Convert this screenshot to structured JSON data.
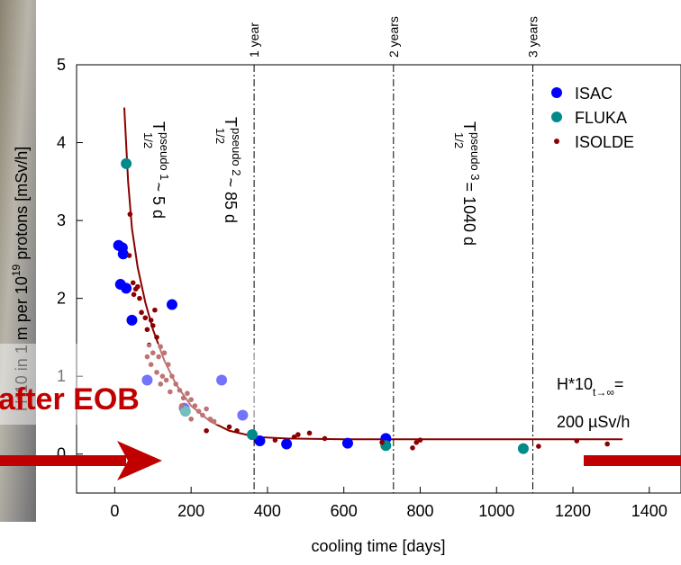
{
  "chart_data": {
    "type": "scatter",
    "xlabel": "cooling time [days]",
    "ylabel": [
      "H*10 in 1 m per 10",
      "19",
      " protons [mSv/h]"
    ],
    "xlim": [
      -100,
      1450
    ],
    "ylim": [
      -0.5,
      5
    ],
    "xticks": [
      0,
      200,
      400,
      600,
      800,
      1000,
      1200,
      1400
    ],
    "yticks": [
      0,
      1,
      2,
      3,
      4,
      5
    ],
    "series": [
      {
        "name": "ISAC",
        "color": "#0000ff",
        "x": [
          10,
          15,
          20,
          22,
          30,
          45,
          150,
          85,
          280,
          335,
          380,
          450,
          610,
          710,
          182
        ],
        "values": [
          2.68,
          2.18,
          2.65,
          2.57,
          2.13,
          1.72,
          1.92,
          0.95,
          0.95,
          0.5,
          0.17,
          0.13,
          0.14,
          0.2,
          0.59
        ]
      },
      {
        "name": "FLUKA",
        "color": "#008b8b",
        "x": [
          30,
          360,
          710,
          1070,
          185
        ],
        "values": [
          3.73,
          0.25,
          0.11,
          0.07,
          0.55
        ]
      },
      {
        "name": "ISOLDE",
        "color": "#8b0000",
        "x": [
          40,
          38,
          48,
          55,
          60,
          50,
          65,
          70,
          80,
          85,
          95,
          100,
          110,
          105,
          90,
          100,
          115,
          120,
          130,
          140,
          95,
          85,
          110,
          125,
          135,
          150,
          160,
          170,
          120,
          145,
          180,
          190,
          200,
          210,
          175,
          220,
          230,
          240,
          250,
          200,
          260,
          240,
          300,
          320,
          420,
          470,
          480,
          510,
          550,
          700,
          780,
          790,
          800,
          1110,
          1210,
          1290
        ],
        "values": [
          3.08,
          2.55,
          2.2,
          2.12,
          2.15,
          2.05,
          2.0,
          1.82,
          1.75,
          1.6,
          1.72,
          1.65,
          1.5,
          1.85,
          1.4,
          1.3,
          1.25,
          1.38,
          1.3,
          1.15,
          1.15,
          1.25,
          1.05,
          1.0,
          0.95,
          1.0,
          0.9,
          0.82,
          0.9,
          0.8,
          0.72,
          0.78,
          0.7,
          0.62,
          0.62,
          0.55,
          0.5,
          0.58,
          0.45,
          0.45,
          0.42,
          0.3,
          0.35,
          0.3,
          0.18,
          0.22,
          0.25,
          0.27,
          0.2,
          0.15,
          0.08,
          0.15,
          0.18,
          0.1,
          0.17,
          0.13
        ]
      }
    ],
    "fit": {
      "color": "#8b0000",
      "x": [
        25,
        35,
        45,
        60,
        80,
        100,
        130,
        160,
        200,
        250,
        300,
        370,
        450,
        600,
        800,
        1000,
        1330
      ],
      "values": [
        4.45,
        3.5,
        2.9,
        2.4,
        1.95,
        1.6,
        1.2,
        0.9,
        0.62,
        0.42,
        0.3,
        0.22,
        0.2,
        0.19,
        0.19,
        0.19,
        0.19
      ]
    },
    "vlines": [
      {
        "x": 365,
        "label": "1 year"
      },
      {
        "x": 730,
        "label": "2 years"
      },
      {
        "x": 1095,
        "label": "3 years"
      }
    ],
    "annotations": [
      {
        "base": "T",
        "sup": "pseudo 1",
        "sub": "1/2",
        "rest": " ~ 5 d"
      },
      {
        "base": "T",
        "sup": "pseudo 2",
        "sub": "1/2",
        "rest": " ~ 85 d"
      },
      {
        "base": "T",
        "sup": "pseudo 3",
        "sub": "1/2",
        "rest": " = 1040 d"
      }
    ],
    "dose_note": {
      "base": "H*10",
      "sub": "t→∞",
      "rest": " =",
      "line2": "200 µSv/h"
    },
    "overlay_text": "after EOB",
    "legend": "upper right"
  }
}
